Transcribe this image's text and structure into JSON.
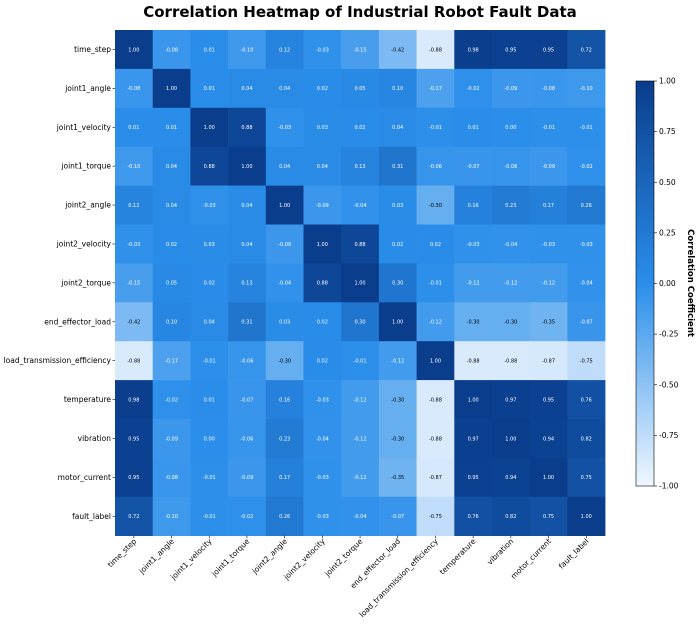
{
  "chart_data": {
    "type": "heatmap",
    "title": "Correlation Heatmap of Industrial Robot Fault Data",
    "variables": [
      "time_step",
      "joint1_angle",
      "joint1_velocity",
      "joint1_torque",
      "joint2_angle",
      "joint2_velocity",
      "joint2_torque",
      "end_effector_load",
      "load_transmission_efficiency",
      "temperature",
      "vibration",
      "motor_current",
      "fault_label"
    ],
    "matrix": [
      [
        1.0,
        -0.08,
        0.01,
        -0.1,
        0.12,
        -0.03,
        -0.15,
        -0.42,
        -0.88,
        0.98,
        0.95,
        0.95,
        0.72
      ],
      [
        -0.08,
        1.0,
        0.01,
        0.04,
        0.04,
        0.02,
        0.05,
        0.1,
        -0.17,
        -0.02,
        -0.09,
        -0.08,
        -0.1
      ],
      [
        0.01,
        0.01,
        1.0,
        0.88,
        -0.03,
        0.03,
        0.02,
        0.04,
        -0.01,
        0.01,
        0.0,
        -0.01,
        -0.01
      ],
      [
        -0.1,
        0.04,
        0.88,
        1.0,
        0.04,
        0.04,
        0.13,
        0.31,
        -0.06,
        -0.07,
        -0.06,
        -0.09,
        -0.02
      ],
      [
        0.12,
        0.04,
        -0.03,
        0.04,
        1.0,
        -0.09,
        -0.04,
        0.03,
        -0.3,
        0.16,
        0.23,
        0.17,
        0.26
      ],
      [
        -0.03,
        0.02,
        0.03,
        0.04,
        -0.09,
        1.0,
        0.88,
        0.02,
        0.02,
        -0.03,
        -0.04,
        -0.03,
        -0.03
      ],
      [
        -0.15,
        0.05,
        0.02,
        0.13,
        -0.04,
        0.88,
        1.0,
        0.3,
        -0.01,
        -0.12,
        -0.12,
        -0.12,
        -0.04
      ],
      [
        -0.42,
        0.1,
        0.04,
        0.31,
        0.03,
        0.02,
        0.3,
        1.0,
        -0.12,
        -0.3,
        -0.3,
        -0.35,
        -0.07
      ],
      [
        -0.88,
        -0.17,
        -0.01,
        -0.06,
        -0.3,
        0.02,
        -0.01,
        -0.12,
        1.0,
        -0.88,
        -0.88,
        -0.87,
        -0.75
      ],
      [
        0.98,
        -0.02,
        0.01,
        -0.07,
        0.16,
        -0.03,
        -0.12,
        -0.3,
        -0.88,
        1.0,
        0.97,
        0.95,
        0.76
      ],
      [
        0.95,
        -0.09,
        0.0,
        -0.06,
        0.23,
        -0.04,
        -0.12,
        -0.3,
        -0.88,
        0.97,
        1.0,
        0.94,
        0.82
      ],
      [
        0.95,
        -0.08,
        -0.01,
        -0.09,
        0.17,
        -0.03,
        -0.12,
        -0.35,
        -0.87,
        0.95,
        0.94,
        1.0,
        0.75
      ],
      [
        0.72,
        -0.1,
        -0.01,
        -0.02,
        0.26,
        -0.03,
        -0.04,
        -0.07,
        -0.75,
        0.76,
        0.82,
        0.75,
        1.0
      ]
    ],
    "colorbar": {
      "label": "Correlation Coefficient",
      "range": [
        -1.0,
        1.0
      ],
      "ticks": [
        "1.00",
        "0.75",
        "0.50",
        "0.25",
        "0.00",
        "-0.25",
        "-0.50",
        "-0.75",
        "-1.00"
      ],
      "tick_values": [
        1.0,
        0.75,
        0.5,
        0.25,
        0.0,
        -0.25,
        -0.5,
        -0.75,
        -1.0
      ]
    },
    "colors": {
      "low": "#f0f7ff",
      "mid": "#2a8eea",
      "high": "#0a3d8c"
    }
  }
}
